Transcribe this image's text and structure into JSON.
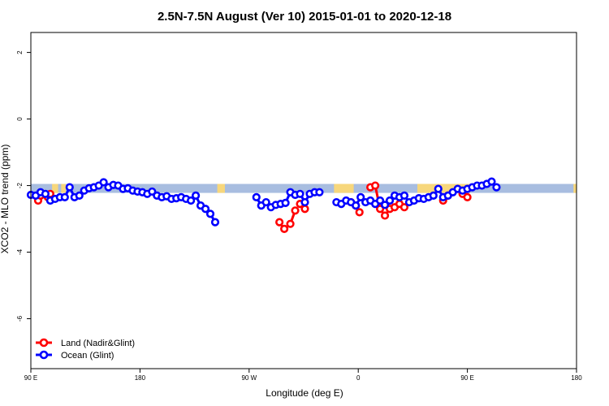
{
  "chart_data": {
    "type": "line",
    "title": "2.5N-7.5N August (Ver 10)   2015-01-01 to 2020-12-18",
    "xlabel": "Longitude (deg E)",
    "ylabel": "XCO2 - MLO trend (ppm)",
    "xlim": [
      90,
      450
    ],
    "ylim": [
      -7.5,
      2.6
    ],
    "x_ticks": [
      90,
      135,
      180,
      225,
      270,
      315,
      360,
      405,
      450
    ],
    "x_tick_labels": [
      "90 E",
      "",
      "180",
      "",
      "90 W",
      "",
      "0",
      "",
      "90 E",
      "",
      "180"
    ],
    "x_tick_positions": [
      90,
      135,
      180,
      225,
      270,
      315,
      360,
      405,
      450,
      495,
      540
    ],
    "y_ticks": [
      2,
      0,
      -2,
      -4,
      -6
    ],
    "y_tick_labels": [
      "2",
      "0",
      "-2",
      "-4",
      "-6"
    ],
    "grid": false,
    "legend_position": "bottom-left",
    "map_band": {
      "y_top": -1.95,
      "y_bottom": -2.22,
      "ocean_color": "#a8bde0",
      "land_color": "#f7d77c"
    },
    "land_segments": [
      [
        104,
        108
      ],
      [
        110,
        113
      ],
      [
        213,
        218
      ],
      [
        290,
        303
      ],
      [
        345,
        380
      ],
      [
        448,
        452
      ],
      [
        512,
        516
      ],
      [
        525,
        532
      ]
    ],
    "series": [
      {
        "name": "Land (Nadir&Glint)",
        "color": "#ff0000",
        "segments": [
          [
            [
              96,
              -2.45
            ],
            [
              98,
              -2.3
            ]
          ],
          [
            [
              104,
              -2.35
            ],
            [
              106,
              -2.25
            ]
          ],
          [
            [
              295,
              -3.1
            ],
            [
              299,
              -3.3
            ]
          ],
          [
            [
              304,
              -3.15
            ],
            [
              308,
              -2.75
            ]
          ],
          [
            [
              312,
              -2.55
            ],
            [
              316,
              -2.7
            ]
          ],
          [
            [
              354,
              -2.5
            ],
            [
              358,
              -2.6
            ]
          ],
          [
            [
              361,
              -2.8
            ]
          ],
          [
            [
              370,
              -2.05
            ],
            [
              374,
              -2.0
            ],
            [
              378,
              -2.7
            ],
            [
              382,
              -2.9
            ],
            [
              386,
              -2.7
            ],
            [
              390,
              -2.65
            ],
            [
              394,
              -2.55
            ],
            [
              398,
              -2.65
            ]
          ],
          [
            [
              430,
              -2.45
            ],
            [
              434,
              -2.3
            ]
          ],
          [
            [
              446,
              -2.25
            ],
            [
              450,
              -2.35
            ]
          ]
        ]
      },
      {
        "name": "Ocean (Glint)",
        "color": "#0000ff",
        "segments": [
          [
            [
              90,
              -2.28
            ],
            [
              94,
              -2.3
            ],
            [
              98,
              -2.2
            ],
            [
              102,
              -2.25
            ],
            [
              106,
              -2.45
            ],
            [
              110,
              -2.4
            ],
            [
              114,
              -2.35
            ],
            [
              118,
              -2.35
            ],
            [
              122,
              -2.05
            ],
            [
              126,
              -2.35
            ],
            [
              130,
              -2.3
            ],
            [
              134,
              -2.15
            ],
            [
              138,
              -2.08
            ],
            [
              142,
              -2.05
            ],
            [
              146,
              -2.0
            ],
            [
              150,
              -1.9
            ],
            [
              154,
              -2.05
            ],
            [
              158,
              -1.98
            ],
            [
              162,
              -2.0
            ],
            [
              166,
              -2.1
            ],
            [
              170,
              -2.08
            ],
            [
              174,
              -2.15
            ],
            [
              178,
              -2.18
            ],
            [
              182,
              -2.2
            ],
            [
              186,
              -2.25
            ],
            [
              190,
              -2.18
            ],
            [
              194,
              -2.3
            ],
            [
              198,
              -2.35
            ],
            [
              202,
              -2.32
            ],
            [
              206,
              -2.4
            ],
            [
              210,
              -2.38
            ],
            [
              214,
              -2.35
            ],
            [
              218,
              -2.4
            ],
            [
              222,
              -2.45
            ],
            [
              226,
              -2.3
            ],
            [
              230,
              -2.6
            ],
            [
              234,
              -2.7
            ],
            [
              238,
              -2.85
            ],
            [
              242,
              -3.1
            ]
          ],
          [
            [
              276,
              -2.35
            ],
            [
              280,
              -2.6
            ],
            [
              284,
              -2.5
            ],
            [
              288,
              -2.65
            ],
            [
              292,
              -2.58
            ],
            [
              296,
              -2.55
            ],
            [
              300,
              -2.52
            ],
            [
              304,
              -2.2
            ],
            [
              308,
              -2.28
            ],
            [
              312,
              -2.25
            ],
            [
              316,
              -2.5
            ],
            [
              320,
              -2.25
            ],
            [
              324,
              -2.2
            ],
            [
              328,
              -2.2
            ]
          ],
          [
            [
              342,
              -2.5
            ],
            [
              346,
              -2.55
            ],
            [
              350,
              -2.45
            ],
            [
              354,
              -2.5
            ],
            [
              358,
              -2.6
            ],
            [
              362,
              -2.35
            ],
            [
              366,
              -2.5
            ],
            [
              370,
              -2.45
            ],
            [
              374,
              -2.55
            ],
            [
              378,
              -2.45
            ],
            [
              382,
              -2.58
            ],
            [
              386,
              -2.45
            ],
            [
              390,
              -2.3
            ],
            [
              394,
              -2.35
            ],
            [
              398,
              -2.3
            ],
            [
              402,
              -2.5
            ],
            [
              406,
              -2.45
            ],
            [
              410,
              -2.38
            ],
            [
              414,
              -2.4
            ],
            [
              418,
              -2.35
            ],
            [
              422,
              -2.3
            ],
            [
              426,
              -2.1
            ],
            [
              430,
              -2.35
            ],
            [
              434,
              -2.3
            ],
            [
              438,
              -2.2
            ],
            [
              442,
              -2.1
            ],
            [
              446,
              -2.15
            ],
            [
              450,
              -2.1
            ],
            [
              454,
              -2.05
            ],
            [
              458,
              -2.0
            ],
            [
              462,
              -2.0
            ],
            [
              466,
              -1.95
            ],
            [
              470,
              -1.88
            ],
            [
              474,
              -2.05
            ]
          ]
        ]
      }
    ]
  }
}
